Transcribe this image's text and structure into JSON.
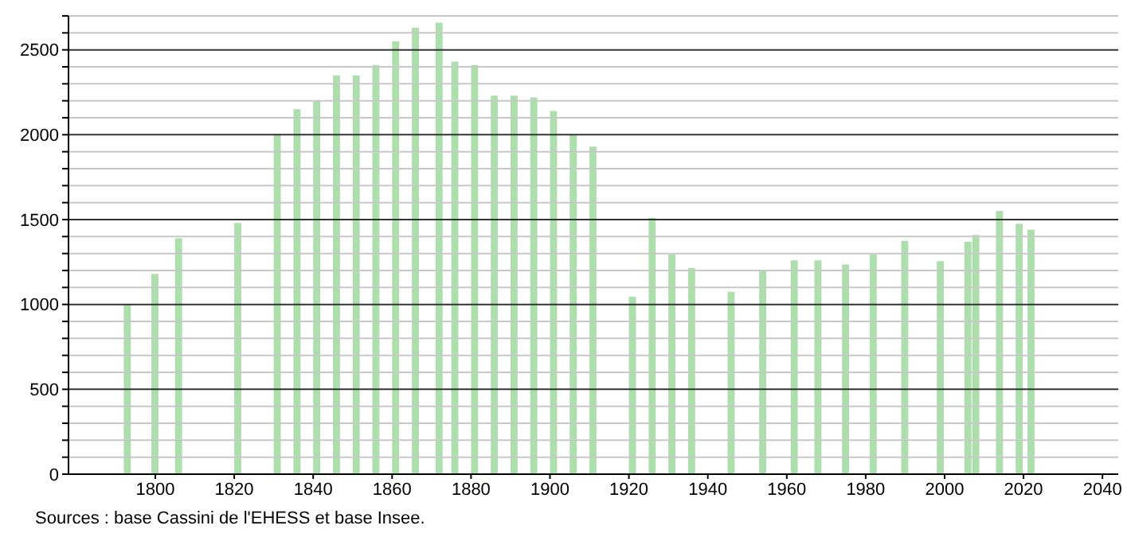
{
  "chart_data": {
    "type": "bar",
    "x": [
      1793,
      1800,
      1806,
      1821,
      1831,
      1836,
      1841,
      1846,
      1851,
      1856,
      1861,
      1866,
      1872,
      1876,
      1881,
      1886,
      1891,
      1896,
      1901,
      1906,
      1911,
      1921,
      1926,
      1931,
      1936,
      1946,
      1954,
      1962,
      1968,
      1975,
      1982,
      1990,
      1999,
      2006,
      2008,
      2014,
      2019,
      2022
    ],
    "values": [
      1000,
      1180,
      1390,
      1480,
      2000,
      2150,
      2200,
      2350,
      2350,
      2410,
      2550,
      2630,
      2660,
      2430,
      2410,
      2230,
      2230,
      2220,
      2140,
      2000,
      1930,
      1045,
      1510,
      1295,
      1215,
      1075,
      1195,
      1260,
      1260,
      1235,
      1295,
      1375,
      1255,
      1370,
      1410,
      1550,
      1475,
      1440
    ],
    "color": "#addfad",
    "xlim": [
      1778,
      2044
    ],
    "xticks": [
      1800,
      1820,
      1840,
      1860,
      1880,
      1900,
      1920,
      1940,
      1960,
      1980,
      2000,
      2020,
      2040
    ],
    "ylim": [
      0,
      2700
    ],
    "yticks": [
      0,
      {
        "value": 100,
        "label": null
      },
      {
        "value": 200,
        "label": null
      },
      {
        "value": 300,
        "label": null
      },
      {
        "value": 400,
        "label": null
      },
      500,
      {
        "value": 600,
        "label": null
      },
      {
        "value": 700,
        "label": null
      },
      {
        "value": 800,
        "label": null
      },
      {
        "value": 900,
        "label": null
      },
      1000,
      {
        "value": 1100,
        "label": null
      },
      {
        "value": 1200,
        "label": null
      },
      {
        "value": 1300,
        "label": null
      },
      {
        "value": 1400,
        "label": null
      },
      1500,
      {
        "value": 1600,
        "label": null
      },
      {
        "value": 1700,
        "label": null
      },
      {
        "value": 1800,
        "label": null
      },
      {
        "value": 1900,
        "label": null
      },
      2000,
      {
        "value": 2100,
        "label": null
      },
      {
        "value": 2200,
        "label": null
      },
      {
        "value": 2300,
        "label": null
      },
      {
        "value": 2400,
        "label": null
      },
      2500,
      {
        "value": 2600,
        "label": null
      },
      {
        "value": 2700,
        "label": null
      }
    ],
    "grid": "y",
    "annotations": [
      "Sources : base Cassini de l'EHESS et base Insee."
    ]
  }
}
